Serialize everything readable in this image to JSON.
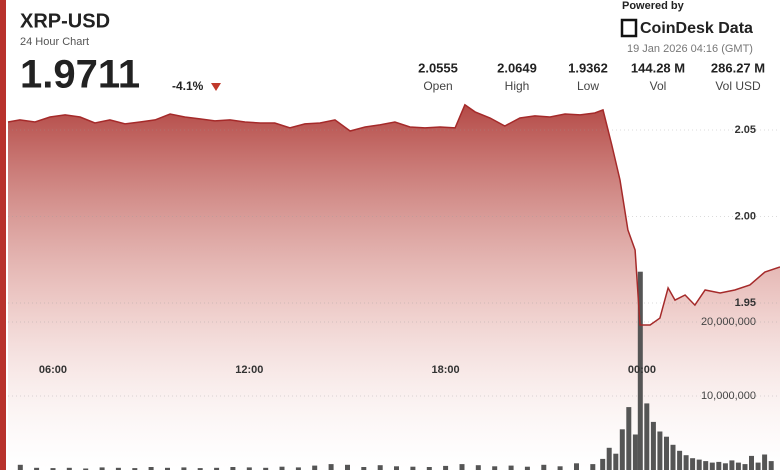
{
  "chart_data": {
    "type": "line",
    "title": "XRP-USD",
    "subtitle": "24 Hour Chart",
    "price": 1.9711,
    "change": -4.1,
    "change_label": "-4.1%",
    "stats": [
      {
        "value": 2.0555,
        "label": "Open"
      },
      {
        "value": 2.0649,
        "label": "High"
      },
      {
        "value": 1.9362,
        "label": "Low"
      },
      {
        "value": 144.28,
        "value_label": "144.28 M",
        "label": "Vol"
      },
      {
        "value": 286.27,
        "value_label": "286.27 M",
        "label": "Vol USD"
      }
    ],
    "powered_by": "Powered by",
    "brand": "CoinDesk Data",
    "timestamp": "19 Jan 2026 04:16 (GMT)",
    "x": [
      4.625,
      4.99,
      5.45,
      5.91,
      6.37,
      6.83,
      7.28,
      7.74,
      8.2,
      8.66,
      9.12,
      9.58,
      10.03,
      10.49,
      10.95,
      11.41,
      11.87,
      12.33,
      12.78,
      13.24,
      13.7,
      14.16,
      14.62,
      15.08,
      15.54,
      15.99,
      16.45,
      16.91,
      17.37,
      17.83,
      18.29,
      18.59,
      18.9,
      19.36,
      19.81,
      20.27,
      20.73,
      21.19,
      21.65,
      22.11,
      22.56,
      22.81,
      23.08,
      23.33,
      23.57,
      23.79,
      23.94,
      24.25,
      24.55,
      24.8,
      25.01,
      25.32,
      25.62,
      25.93,
      26.39,
      26.84,
      27.3,
      27.76,
      28.22
    ],
    "series": [
      {
        "color": "#a52a2a",
        "values": [
          2.0546,
          2.0558,
          2.0546,
          2.0575,
          2.0587,
          2.0575,
          2.054,
          2.0558,
          2.0535,
          2.0546,
          2.0558,
          2.0592,
          2.0575,
          2.0564,
          2.0552,
          2.0558,
          2.0546,
          2.054,
          2.054,
          2.0512,
          2.0535,
          2.054,
          2.0558,
          2.0494,
          2.0517,
          2.0529,
          2.0546,
          2.0517,
          2.0512,
          2.0517,
          2.0512,
          2.0645,
          2.0604,
          2.0569,
          2.0523,
          2.0569,
          2.0581,
          2.0575,
          2.0592,
          2.0587,
          2.0598,
          2.0616,
          2.0413,
          2.0211,
          1.9922,
          1.9806,
          1.9373,
          1.9373,
          1.9413,
          1.9587,
          1.9517,
          1.9546,
          1.9488,
          1.9575,
          1.9558,
          1.9575,
          1.9604,
          1.9679,
          1.9708
        ]
      },
      {
        "type": "bar",
        "axis": "y2",
        "color": "#555555",
        "x": [
          5,
          5.5,
          6,
          6.5,
          7,
          7.5,
          8,
          8.5,
          9,
          9.5,
          10,
          10.5,
          11,
          11.5,
          12,
          12.5,
          13,
          13.5,
          14,
          14.5,
          15,
          15.5,
          16,
          16.5,
          17,
          17.5,
          18,
          18.5,
          19,
          19.5,
          20,
          20.5,
          21,
          21.5,
          22,
          22.5,
          22.8,
          23,
          23.2,
          23.4,
          23.6,
          23.8,
          23.95,
          24.15,
          24.35,
          24.55,
          24.75,
          24.95,
          25.15,
          25.35,
          25.55,
          25.75,
          25.95,
          26.15,
          26.35,
          26.55,
          26.75,
          26.95,
          27.15,
          27.35,
          27.55,
          27.75,
          27.95
        ],
        "values": [
          700000,
          300000,
          250000,
          300000,
          200000,
          350000,
          300000,
          250000,
          400000,
          300000,
          350000,
          250000,
          300000,
          400000,
          350000,
          300000,
          450000,
          350000,
          600000,
          800000,
          700000,
          400000,
          650000,
          500000,
          450000,
          400000,
          550000,
          800000,
          650000,
          500000,
          600000,
          450000,
          700000,
          500000,
          900000,
          800000,
          1500000,
          3000000,
          2200000,
          5500000,
          8500000,
          4800000,
          26800000,
          9000000,
          6500000,
          5200000,
          4500000,
          3400000,
          2600000,
          2000000,
          1600000,
          1400000,
          1200000,
          1000000,
          1100000,
          900000,
          1300000,
          1000000,
          800000,
          1900000,
          1000000,
          2100000,
          1200000
        ]
      }
    ],
    "xlim": [
      4.625,
      28.22
    ],
    "xticks": [
      {
        "value": 6,
        "label": "06:00"
      },
      {
        "value": 12,
        "label": "12:00"
      },
      {
        "value": 18,
        "label": "18:00"
      },
      {
        "value": 24,
        "label": "00:00"
      }
    ],
    "ylim": [
      1.8535,
      2.0673
    ],
    "yticks": [
      2.05,
      {
        "value": 2,
        "label": "2.00"
      },
      1.95
    ],
    "y2lim": [
      0,
      50000000
    ],
    "y2ticks": [
      {
        "value": 10000000,
        "label": "10,000,000"
      },
      {
        "value": 20000000,
        "label": "20,000,000"
      }
    ],
    "grid": true
  }
}
